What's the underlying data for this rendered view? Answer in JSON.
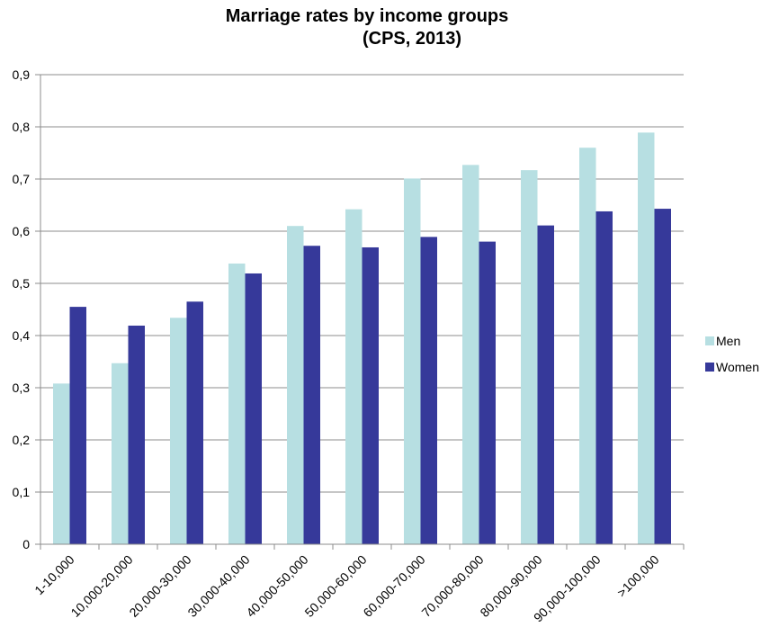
{
  "chart_data": {
    "type": "bar",
    "title_line1": "Marriage rates by income groups",
    "title_line2": "(CPS, 2013)",
    "categories": [
      "1-10,000",
      "10,000-20,000",
      "20,000-30,000",
      "30,000-40,000",
      "40,000-50,000",
      "50,000-60,000",
      "60,000-70,000",
      "70,000-80,000",
      "80,000-90,000",
      "90,000-100,000",
      ">100,000"
    ],
    "series": [
      {
        "name": "Men",
        "color": "#b7dfe2",
        "values": [
          0.308,
          0.347,
          0.434,
          0.538,
          0.61,
          0.642,
          0.701,
          0.727,
          0.717,
          0.76,
          0.789
        ]
      },
      {
        "name": "Women",
        "color": "#36399a",
        "values": [
          0.455,
          0.419,
          0.465,
          0.519,
          0.572,
          0.569,
          0.589,
          0.58,
          0.611,
          0.638,
          0.643
        ]
      }
    ],
    "ylim": [
      0,
      0.9
    ],
    "yticks": [
      "0",
      "0,1",
      "0,2",
      "0,3",
      "0,4",
      "0,5",
      "0,6",
      "0,7",
      "0,8",
      "0,9"
    ],
    "xlabel": "",
    "ylabel": "",
    "grid": true,
    "legend_position": "right"
  }
}
